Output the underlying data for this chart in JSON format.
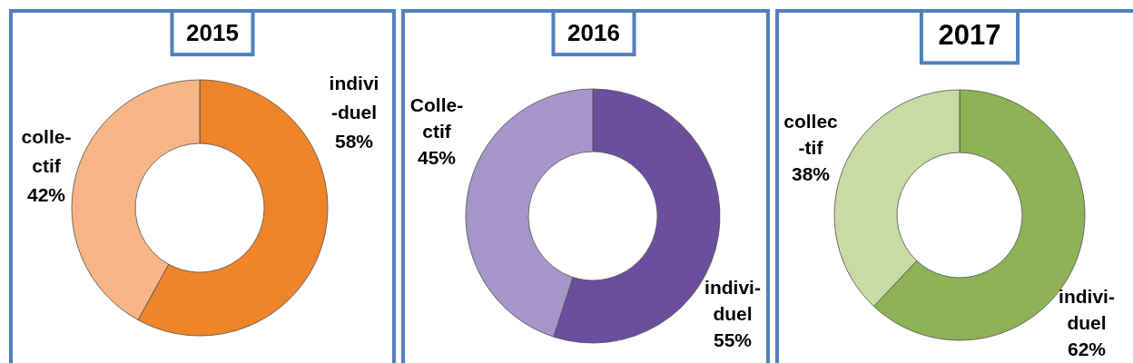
{
  "chart_data": [
    {
      "type": "donut",
      "title": "2015",
      "categories": [
        "indivi\n-duel",
        "colle-\nctif"
      ],
      "values": [
        58,
        42
      ],
      "colors": [
        "#ef8429",
        "#f8b587"
      ],
      "value_labels": [
        "58%",
        "42%"
      ]
    },
    {
      "type": "donut",
      "title": "2016",
      "categories": [
        "indivi-\nduel",
        "Colle-\nctif"
      ],
      "values": [
        55,
        45
      ],
      "colors": [
        "#6b4f9e",
        "#a595c9"
      ],
      "value_labels": [
        "55%",
        "45%"
      ]
    },
    {
      "type": "donut",
      "title": "2017",
      "categories": [
        "indivi-\nduel",
        "collec\n-tif"
      ],
      "values": [
        62,
        38
      ],
      "colors": [
        "#8db255",
        "#c8dba5"
      ],
      "value_labels": [
        "62%",
        "38%"
      ]
    }
  ]
}
